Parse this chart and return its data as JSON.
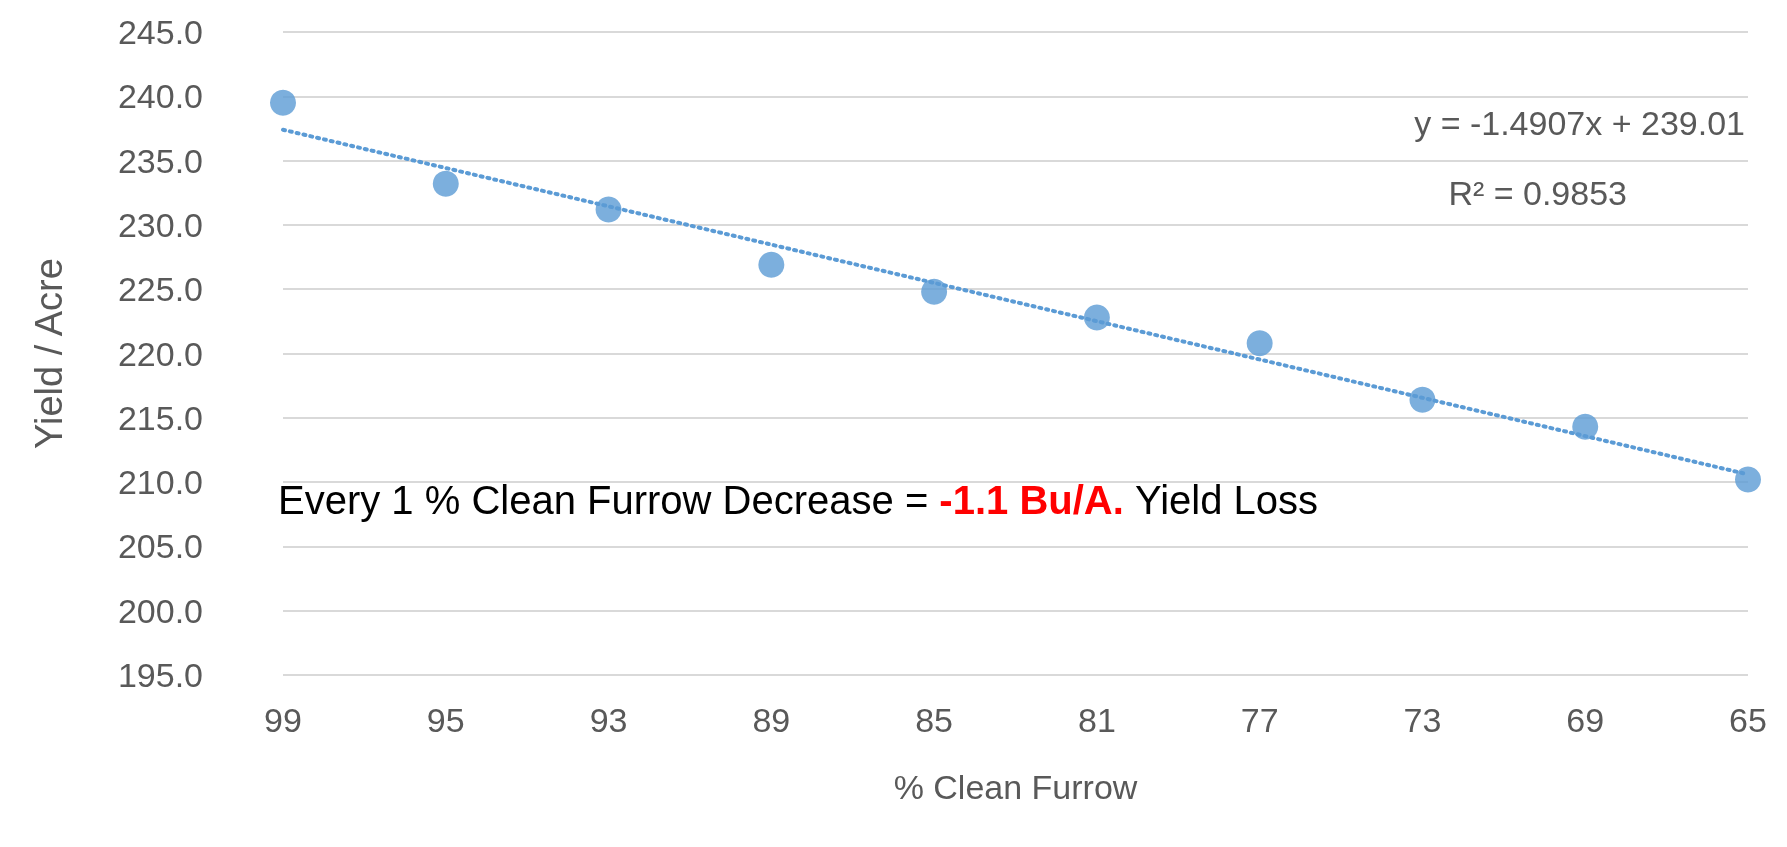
{
  "chart_data": {
    "type": "scatter",
    "xlabel": "% Clean Furrow",
    "ylabel": "Yield / Acre",
    "categories": [
      "99",
      "95",
      "93",
      "89",
      "85",
      "81",
      "77",
      "73",
      "69",
      "65"
    ],
    "series": [
      {
        "color": "#5b9bd5",
        "values": [
          239.5,
          233.2,
          231.2,
          226.9,
          224.8,
          222.8,
          220.8,
          216.4,
          214.3,
          210.2
        ],
        "marker": "circle"
      },
      {
        "type": "line",
        "color": "#5b9bd5",
        "x": [
          "99",
          "65"
        ],
        "values": [
          237.4,
          210.6
        ],
        "line_style": "dotted",
        "marker": "none"
      }
    ],
    "ylim": [
      195,
      245
    ],
    "yticks": [
      {
        "value": 195,
        "label": "195.0"
      },
      {
        "value": 200,
        "label": "200.0"
      },
      {
        "value": 205,
        "label": "205.0"
      },
      {
        "value": 210,
        "label": "210.0"
      },
      {
        "value": 215,
        "label": "215.0"
      },
      {
        "value": 220,
        "label": "220.0"
      },
      {
        "value": 225,
        "label": "225.0"
      },
      {
        "value": 230,
        "label": "230.0"
      },
      {
        "value": 235,
        "label": "235.0"
      },
      {
        "value": 240,
        "label": "240.0"
      },
      {
        "value": 245,
        "label": "245.0"
      }
    ],
    "grid": "y",
    "annotations": [
      "y = -1.4907x + 239.01",
      "R² = 0.9853",
      "Every 1 % Clean Furrow Decrease =",
      "-1.1 Bu/A.",
      "Yield Loss"
    ]
  }
}
